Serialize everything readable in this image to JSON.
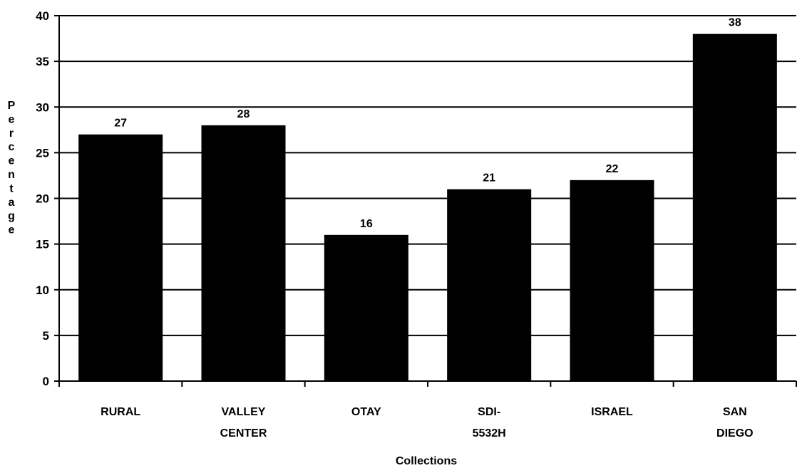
{
  "chart_data": {
    "type": "bar",
    "categories": [
      [
        "RURAL"
      ],
      [
        "VALLEY",
        "CENTER"
      ],
      [
        "OTAY"
      ],
      [
        "SDI-",
        "5532H"
      ],
      [
        "ISRAEL"
      ],
      [
        "SAN",
        "DIEGO"
      ]
    ],
    "values": [
      27,
      28,
      16,
      21,
      22,
      38
    ],
    "data_labels": [
      "27",
      "28",
      "16",
      "21",
      "22",
      "38"
    ],
    "xlabel": "Collections",
    "ylabel": "Percentage",
    "ylim": [
      0,
      40
    ],
    "yticks": [
      0,
      5,
      10,
      15,
      20,
      25,
      30,
      35,
      40
    ],
    "grid": true,
    "legend": "none",
    "colors": {
      "bar": "#000000",
      "grid": "#000000",
      "background": "#ffffff"
    }
  }
}
